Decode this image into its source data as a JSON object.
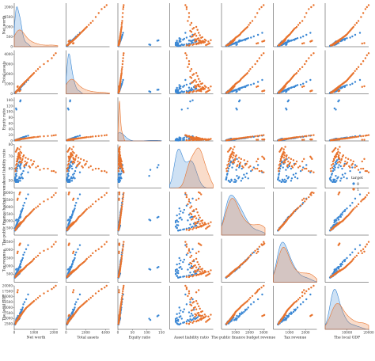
{
  "colors": {
    "c0": "#3a87d4",
    "c1": "#e8732d"
  },
  "chart_data": {
    "type": "scatter",
    "kind": "pairplot",
    "variables": [
      "Net worth",
      "Total assets",
      "Equity ratio",
      "Asset liability ratio",
      "The public finance budget revenue",
      "Tax revenue",
      "The local GDP"
    ],
    "ranges": [
      [
        0,
        2200
      ],
      [
        0,
        4400
      ],
      [
        0,
        150
      ],
      [
        44,
        80
      ],
      [
        0,
        3100
      ],
      [
        0,
        2700
      ],
      [
        0,
        20000
      ]
    ],
    "tick_labels": [
      [
        "0",
        "1000",
        "2000"
      ],
      [
        "0",
        "2000",
        "4000"
      ],
      [
        "0",
        "50",
        "100",
        "150"
      ],
      [],
      [
        "1000",
        "2000",
        "3000"
      ],
      [
        "1000",
        "2000"
      ],
      [
        "10000",
        "20000"
      ]
    ],
    "y_tick_labels": [
      [
        "0",
        "500",
        "1000",
        "1500",
        "2000"
      ],
      [
        "0",
        "1000",
        "2000",
        "3000",
        "4000"
      ],
      [
        "0",
        "20",
        "40",
        "60",
        "80",
        "100",
        "120",
        "140"
      ],
      [
        "50",
        "60",
        "70",
        "80"
      ],
      [
        "500",
        "1000",
        "1500",
        "2000",
        "2500",
        "3000"
      ],
      [
        "500",
        "1000",
        "1500",
        "2000",
        "2500"
      ],
      [
        "2500",
        "5000",
        "7500",
        "10000",
        "12500",
        "15000",
        "17500",
        "20000"
      ]
    ],
    "hue": "target",
    "legend_title": "target",
    "legend_entries": [
      "0",
      "1"
    ],
    "legend_position": "right",
    "series": [
      {
        "name": "0",
        "color": "#3a87d4",
        "points": [
          [
            30,
            60,
            1.5,
            51,
            320,
            280,
            2300
          ],
          [
            40,
            90,
            1.5,
            51,
            330,
            290,
            2400
          ],
          [
            50,
            110,
            2,
            50,
            500,
            380,
            2700
          ],
          [
            60,
            140,
            2,
            50,
            520,
            400,
            2800
          ],
          [
            80,
            180,
            2.5,
            49,
            600,
            500,
            3400
          ],
          [
            90,
            200,
            2.5,
            49,
            610,
            520,
            3500
          ],
          [
            100,
            240,
            3,
            51,
            700,
            560,
            3800
          ],
          [
            120,
            260,
            3,
            50,
            720,
            600,
            4000
          ],
          [
            150,
            320,
            4,
            49,
            900,
            680,
            4200
          ],
          [
            170,
            360,
            5,
            51,
            950,
            700,
            4400
          ],
          [
            200,
            380,
            5,
            49,
            1000,
            760,
            4800
          ],
          [
            220,
            420,
            6,
            50,
            1050,
            800,
            5200
          ],
          [
            250,
            500,
            7,
            52,
            1200,
            900,
            5600
          ],
          [
            260,
            540,
            7,
            53,
            1250,
            950,
            6000
          ],
          [
            300,
            600,
            8,
            50,
            1400,
            1100,
            7000
          ],
          [
            320,
            650,
            9,
            52,
            1500,
            1150,
            7400
          ],
          [
            350,
            700,
            9,
            55,
            1600,
            1250,
            8000
          ],
          [
            380,
            760,
            10,
            53,
            1700,
            1350,
            8600
          ],
          [
            400,
            820,
            11,
            56,
            1800,
            1400,
            9200
          ],
          [
            430,
            880,
            12,
            52,
            1900,
            1500,
            10000
          ],
          [
            40,
            100,
            2,
            52,
            340,
            300,
            2200
          ],
          [
            60,
            150,
            3,
            53,
            360,
            320,
            2600
          ],
          [
            80,
            170,
            3,
            55,
            400,
            340,
            3000
          ],
          [
            100,
            210,
            4,
            56,
            420,
            360,
            3200
          ],
          [
            130,
            280,
            4,
            58,
            460,
            380,
            3600
          ],
          [
            150,
            300,
            5,
            60,
            500,
            420,
            3800
          ],
          [
            180,
            350,
            6,
            62,
            560,
            450,
            4100
          ],
          [
            210,
            410,
            6,
            63,
            600,
            470,
            4500
          ],
          [
            240,
            470,
            7,
            65,
            640,
            520,
            4700
          ],
          [
            270,
            520,
            8,
            66,
            680,
            540,
            5100
          ],
          [
            120,
            230,
            4,
            61,
            760,
            600,
            4600
          ],
          [
            140,
            270,
            5,
            64,
            820,
            640,
            5200
          ],
          [
            160,
            330,
            5,
            67,
            860,
            690,
            5500
          ],
          [
            190,
            390,
            6,
            68,
            1100,
            840,
            6200
          ],
          [
            280,
            560,
            8,
            62,
            1300,
            1000,
            7200
          ],
          [
            310,
            620,
            9,
            60,
            1450,
            1100,
            7800
          ],
          [
            340,
            690,
            10,
            64,
            1700,
            1300,
            9000
          ],
          [
            460,
            920,
            13,
            58,
            2100,
            1700,
            11500
          ],
          [
            520,
            1020,
            14,
            61,
            2300,
            1850,
            12500
          ],
          [
            600,
            1200,
            16,
            63,
            2600,
            2050,
            13800
          ],
          [
            700,
            1400,
            18,
            57,
            2900,
            2300,
            16000
          ],
          [
            90,
            190,
            112,
            59,
            1050,
            780,
            4300
          ],
          [
            110,
            250,
            108,
            54,
            1100,
            820,
            4900
          ],
          [
            300,
            400,
            136,
            61,
            1250,
            900,
            6000
          ],
          [
            320,
            420,
            140,
            63,
            1300,
            950,
            6400
          ]
        ]
      },
      {
        "name": "1",
        "color": "#e8732d",
        "points": [
          [
            60,
            100,
            2,
            60,
            350,
            320,
            2500
          ],
          [
            90,
            180,
            2.5,
            63,
            420,
            360,
            3000
          ],
          [
            120,
            250,
            3,
            66,
            500,
            420,
            3600
          ],
          [
            150,
            320,
            3.5,
            68,
            560,
            460,
            4000
          ],
          [
            180,
            400,
            4,
            70,
            600,
            500,
            4400
          ],
          [
            220,
            480,
            4.5,
            71,
            650,
            540,
            4900
          ],
          [
            250,
            560,
            5,
            72,
            700,
            580,
            5300
          ],
          [
            280,
            640,
            5,
            65,
            760,
            620,
            5800
          ],
          [
            320,
            720,
            6,
            69,
            800,
            660,
            6200
          ],
          [
            360,
            800,
            6,
            73,
            880,
            700,
            6800
          ],
          [
            400,
            900,
            7,
            67,
            950,
            760,
            7400
          ],
          [
            450,
            1000,
            7,
            70,
            1000,
            800,
            8000
          ],
          [
            500,
            1100,
            8,
            62,
            1100,
            860,
            8600
          ],
          [
            550,
            1200,
            8,
            66,
            1200,
            920,
            9200
          ],
          [
            600,
            1300,
            9,
            64,
            1300,
            1000,
            9800
          ],
          [
            700,
            1500,
            10,
            68,
            1400,
            1100,
            10600
          ],
          [
            800,
            1700,
            11,
            61,
            1550,
            1200,
            11400
          ],
          [
            900,
            1900,
            12,
            63,
            1700,
            1300,
            12200
          ],
          [
            1000,
            2100,
            13,
            66,
            1850,
            1450,
            13000
          ],
          [
            1200,
            2500,
            14,
            62,
            2050,
            1650,
            14500
          ],
          [
            1500,
            3000,
            16,
            60,
            2400,
            1950,
            16500
          ],
          [
            1900,
            3600,
            18,
            58,
            2700,
            2200,
            18500
          ],
          [
            2100,
            4100,
            20,
            57,
            3000,
            2500,
            20000
          ],
          [
            70,
            140,
            2,
            58,
            380,
            330,
            2700
          ],
          [
            100,
            200,
            3,
            61,
            440,
            380,
            3300
          ],
          [
            130,
            280,
            3,
            64,
            520,
            430,
            3700
          ],
          [
            160,
            340,
            4,
            67,
            580,
            470,
            4100
          ],
          [
            200,
            420,
            4,
            69,
            620,
            510,
            4600
          ],
          [
            240,
            520,
            5,
            70,
            680,
            560,
            5100
          ],
          [
            270,
            600,
            5,
            72,
            740,
            600,
            5600
          ],
          [
            310,
            680,
            6,
            74,
            780,
            640,
            6000
          ],
          [
            340,
            760,
            6,
            66,
            840,
            680,
            6500
          ],
          [
            380,
            840,
            7,
            65,
            900,
            720,
            7000
          ],
          [
            420,
            940,
            7,
            68,
            970,
            780,
            7600
          ],
          [
            480,
            1050,
            8,
            71,
            1050,
            830,
            8300
          ],
          [
            520,
            1150,
            8,
            63,
            1150,
            890,
            8900
          ],
          [
            580,
            1250,
            9,
            69,
            1250,
            960,
            9500
          ],
          [
            650,
            1400,
            9,
            65,
            1350,
            1050,
            10200
          ],
          [
            750,
            1600,
            10,
            62,
            1480,
            1150,
            11000
          ],
          [
            850,
            1800,
            11,
            67,
            1620,
            1250,
            11800
          ],
          [
            950,
            2000,
            12,
            64,
            1780,
            1380,
            12600
          ],
          [
            1100,
            2300,
            13,
            61,
            1950,
            1550,
            13700
          ],
          [
            1300,
            2700,
            15,
            59,
            2200,
            1800,
            15300
          ],
          [
            1700,
            3300,
            17,
            60,
            2550,
            2050,
            17500
          ],
          [
            2000,
            3900,
            19,
            58,
            2850,
            2350,
            19200
          ],
          [
            80,
            160,
            3,
            74,
            460,
            390,
            3400
          ],
          [
            110,
            230,
            4,
            75,
            540,
            440,
            3900
          ],
          [
            140,
            300,
            4,
            76,
            600,
            480,
            4300
          ],
          [
            170,
            370,
            5,
            77,
            660,
            530,
            4800
          ],
          [
            210,
            450,
            5,
            72,
            720,
            570,
            5200
          ],
          [
            230,
            500,
            6,
            73,
            760,
            610,
            5500
          ],
          [
            260,
            580,
            6,
            76,
            820,
            650,
            5900
          ],
          [
            290,
            660,
            7,
            71,
            860,
            690,
            6300
          ],
          [
            330,
            740,
            7,
            78,
            920,
            740,
            6700
          ],
          [
            260,
            260,
            5,
            70,
            2900,
            2300,
            6100
          ],
          [
            280,
            300,
            5,
            69,
            3000,
            2350,
            6400
          ],
          [
            300,
            320,
            5,
            68,
            3050,
            2400,
            6600
          ],
          [
            160,
            700,
            4,
            66,
            2500,
            1800,
            17000
          ],
          [
            180,
            760,
            4,
            68,
            2600,
            1900,
            18000
          ]
        ]
      }
    ]
  }
}
